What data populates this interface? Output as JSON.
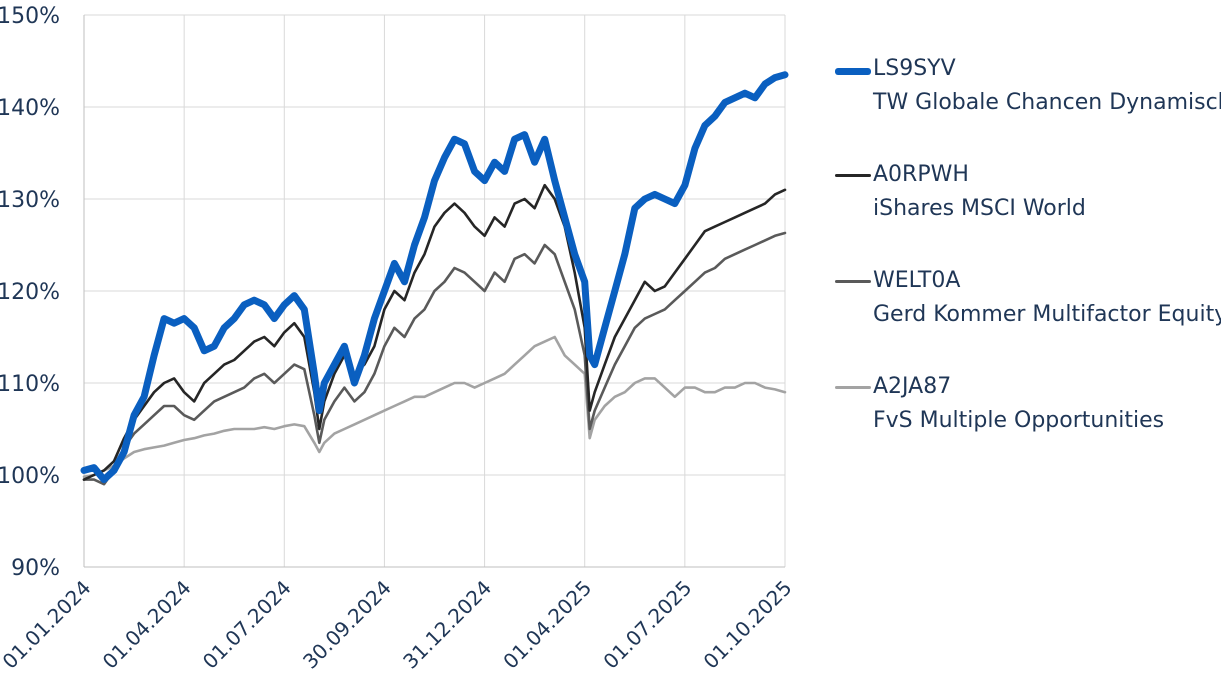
{
  "chart_data": {
    "type": "line",
    "title": "",
    "xlabel": "",
    "ylabel": "",
    "ylim": [
      90,
      150
    ],
    "yticks": [
      "90%",
      "100%",
      "110%",
      "120%",
      "130%",
      "140%",
      "150%"
    ],
    "ytick_values": [
      90,
      100,
      110,
      120,
      130,
      140,
      150
    ],
    "xticks": [
      "01.01.2024",
      "01.04.2024",
      "01.07.2024",
      "30.09.2024",
      "31.12.2024",
      "01.04.2025",
      "01.07.2025",
      "01.10.2025"
    ],
    "x_range": [
      0,
      7
    ],
    "grid": true,
    "legend_position": "right",
    "series": [
      {
        "code": "LS9SYV",
        "name": "TW Globale Chancen Dynamisch",
        "color": "#0a5fc0",
        "width": 7,
        "x": [
          0,
          0.1,
          0.2,
          0.3,
          0.4,
          0.5,
          0.6,
          0.7,
          0.8,
          0.9,
          1.0,
          1.1,
          1.2,
          1.3,
          1.4,
          1.5,
          1.6,
          1.7,
          1.8,
          1.9,
          2.0,
          2.1,
          2.2,
          2.3,
          2.35,
          2.4,
          2.5,
          2.6,
          2.7,
          2.8,
          2.9,
          3.0,
          3.1,
          3.2,
          3.3,
          3.4,
          3.5,
          3.6,
          3.7,
          3.8,
          3.9,
          4.0,
          4.1,
          4.2,
          4.3,
          4.4,
          4.5,
          4.6,
          4.7,
          4.8,
          4.9,
          5.0,
          5.05,
          5.1,
          5.2,
          5.3,
          5.4,
          5.5,
          5.6,
          5.7,
          5.8,
          5.9,
          6.0,
          6.1,
          6.2,
          6.3,
          6.4,
          6.5,
          6.6,
          6.7,
          6.8,
          6.9,
          7.0
        ],
        "y": [
          100.5,
          100.8,
          99.5,
          100.5,
          102.5,
          106.5,
          108.5,
          113,
          117,
          116.5,
          117,
          116,
          113.5,
          114,
          116,
          117,
          118.5,
          119,
          118.5,
          117,
          118.5,
          119.5,
          118,
          111,
          107,
          110,
          112,
          114,
          110,
          113,
          117,
          120,
          123,
          121,
          125,
          128,
          132,
          134.5,
          136.5,
          136,
          133,
          132,
          134,
          133,
          136.5,
          137,
          134,
          136.5,
          132,
          128,
          124,
          121,
          113,
          112,
          116,
          120,
          124,
          129,
          130,
          130.5,
          130,
          129.5,
          131.5,
          135.5,
          138,
          139,
          140.5,
          141,
          141.5,
          141,
          142.5,
          143.2,
          143.5
        ]
      },
      {
        "code": "A0RPWH",
        "name": "iShares MSCI World",
        "color": "#262626",
        "width": 2.6,
        "x": [
          0,
          0.1,
          0.2,
          0.3,
          0.4,
          0.5,
          0.6,
          0.7,
          0.8,
          0.9,
          1.0,
          1.1,
          1.2,
          1.3,
          1.4,
          1.5,
          1.6,
          1.7,
          1.8,
          1.9,
          2.0,
          2.1,
          2.2,
          2.3,
          2.35,
          2.4,
          2.5,
          2.6,
          2.7,
          2.8,
          2.9,
          3.0,
          3.1,
          3.2,
          3.3,
          3.4,
          3.5,
          3.6,
          3.7,
          3.8,
          3.9,
          4.0,
          4.1,
          4.2,
          4.3,
          4.4,
          4.5,
          4.6,
          4.7,
          4.8,
          4.9,
          5.0,
          5.05,
          5.1,
          5.2,
          5.3,
          5.4,
          5.5,
          5.6,
          5.7,
          5.8,
          5.9,
          6.0,
          6.1,
          6.2,
          6.3,
          6.4,
          6.5,
          6.6,
          6.7,
          6.8,
          6.9,
          7.0
        ],
        "y": [
          99.5,
          100,
          100.5,
          101.5,
          104,
          106,
          107.5,
          109,
          110,
          110.5,
          109,
          108,
          110,
          111,
          112,
          112.5,
          113.5,
          114.5,
          115,
          114,
          115.5,
          116.5,
          115,
          109,
          105,
          108,
          111,
          113,
          111,
          112,
          114,
          118,
          120,
          119,
          122,
          124,
          127,
          128.5,
          129.5,
          128.5,
          127,
          126,
          128,
          127,
          129.5,
          130,
          129,
          131.5,
          130,
          127,
          122,
          116,
          107,
          109,
          112,
          115,
          117,
          119,
          121,
          120,
          120.5,
          122,
          123.5,
          125,
          126.5,
          127,
          127.5,
          128,
          128.5,
          129,
          129.5,
          130.5,
          131
        ]
      },
      {
        "code": "WELT0A",
        "name": "Gerd Kommer Multifactor Equity",
        "color": "#5a5a5a",
        "width": 2.6,
        "x": [
          0,
          0.1,
          0.2,
          0.3,
          0.4,
          0.5,
          0.6,
          0.7,
          0.8,
          0.9,
          1.0,
          1.1,
          1.2,
          1.3,
          1.4,
          1.5,
          1.6,
          1.7,
          1.8,
          1.9,
          2.0,
          2.1,
          2.2,
          2.3,
          2.35,
          2.4,
          2.5,
          2.6,
          2.7,
          2.8,
          2.9,
          3.0,
          3.1,
          3.2,
          3.3,
          3.4,
          3.5,
          3.6,
          3.7,
          3.8,
          3.9,
          4.0,
          4.1,
          4.2,
          4.3,
          4.4,
          4.5,
          4.6,
          4.7,
          4.8,
          4.9,
          5.0,
          5.05,
          5.1,
          5.2,
          5.3,
          5.4,
          5.5,
          5.6,
          5.7,
          5.8,
          5.9,
          6.0,
          6.1,
          6.2,
          6.3,
          6.4,
          6.5,
          6.6,
          6.7,
          6.8,
          6.9,
          7.0
        ],
        "y": [
          99.5,
          99.5,
          99,
          100.5,
          103,
          104.5,
          105.5,
          106.5,
          107.5,
          107.5,
          106.5,
          106,
          107,
          108,
          108.5,
          109,
          109.5,
          110.5,
          111,
          110,
          111,
          112,
          111.5,
          106.5,
          103.5,
          106,
          108,
          109.5,
          108,
          109,
          111,
          114,
          116,
          115,
          117,
          118,
          120,
          121,
          122.5,
          122,
          121,
          120,
          122,
          121,
          123.5,
          124,
          123,
          125,
          124,
          121,
          118,
          113,
          105,
          107,
          109.5,
          112,
          114,
          116,
          117,
          117.5,
          118,
          119,
          120,
          121,
          122,
          122.5,
          123.5,
          124,
          124.5,
          125,
          125.5,
          126,
          126.3
        ]
      },
      {
        "code": "A2JA87",
        "name": "FvS Multiple Opportunities",
        "color": "#a3a3a3",
        "width": 2.6,
        "x": [
          0,
          0.1,
          0.2,
          0.3,
          0.4,
          0.5,
          0.6,
          0.7,
          0.8,
          0.9,
          1.0,
          1.1,
          1.2,
          1.3,
          1.4,
          1.5,
          1.6,
          1.7,
          1.8,
          1.9,
          2.0,
          2.1,
          2.2,
          2.3,
          2.35,
          2.4,
          2.5,
          2.6,
          2.7,
          2.8,
          2.9,
          3.0,
          3.1,
          3.2,
          3.3,
          3.4,
          3.5,
          3.6,
          3.7,
          3.8,
          3.9,
          4.0,
          4.1,
          4.2,
          4.3,
          4.4,
          4.5,
          4.6,
          4.7,
          4.8,
          4.9,
          5.0,
          5.05,
          5.1,
          5.2,
          5.3,
          5.4,
          5.5,
          5.6,
          5.7,
          5.8,
          5.9,
          6.0,
          6.1,
          6.2,
          6.3,
          6.4,
          6.5,
          6.6,
          6.7,
          6.8,
          6.9,
          7.0
        ],
        "y": [
          99.8,
          100,
          100.5,
          101,
          101.8,
          102.5,
          102.8,
          103,
          103.2,
          103.5,
          103.8,
          104,
          104.3,
          104.5,
          104.8,
          105,
          105,
          105,
          105.2,
          105,
          105.3,
          105.5,
          105.3,
          103.5,
          102.5,
          103.5,
          104.5,
          105,
          105.5,
          106,
          106.5,
          107,
          107.5,
          108,
          108.5,
          108.5,
          109,
          109.5,
          110,
          110,
          109.5,
          110,
          110.5,
          111,
          112,
          113,
          114,
          114.5,
          115,
          113,
          112,
          111,
          104,
          106,
          107.5,
          108.5,
          109,
          110,
          110.5,
          110.5,
          109.5,
          108.5,
          109.5,
          109.5,
          109,
          109,
          109.5,
          109.5,
          110,
          110,
          109.5,
          109.3,
          109
        ]
      }
    ]
  }
}
